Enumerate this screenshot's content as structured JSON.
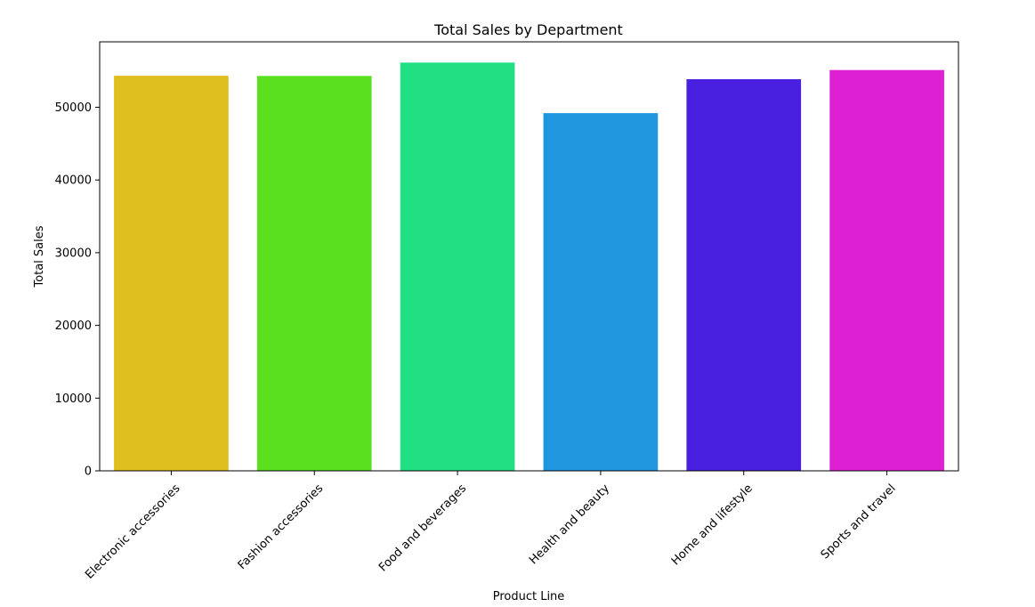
{
  "chart_data": {
    "type": "bar",
    "title": "Total Sales by Department",
    "xlabel": "Product Line",
    "ylabel": "Total Sales",
    "categories": [
      "Electronic accessories",
      "Fashion accessories",
      "Food and beverages",
      "Health and beauty",
      "Home and lifestyle",
      "Sports and travel"
    ],
    "values": [
      54338,
      54306,
      56145,
      49194,
      53862,
      55123
    ],
    "colors": [
      "#dfbf20",
      "#5be020",
      "#20e083",
      "#2096df",
      "#4a20e0",
      "#de20d3"
    ],
    "ylim": [
      0,
      59000
    ],
    "yticks": [
      0,
      10000,
      20000,
      30000,
      40000,
      50000
    ],
    "grid": false,
    "legend": false
  }
}
